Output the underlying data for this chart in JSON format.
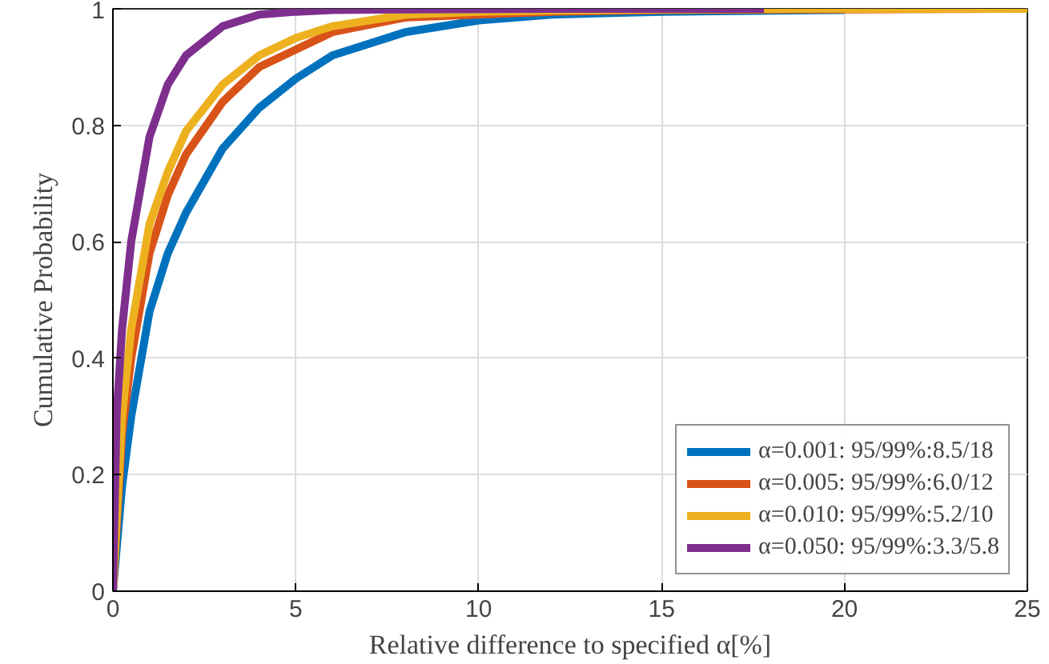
{
  "chart_data": {
    "type": "line",
    "xlabel": "Relative difference to specified α[%]",
    "ylabel": "Cumulative Probability",
    "xlim": [
      0,
      25
    ],
    "ylim": [
      0,
      1
    ],
    "xticks": [
      0,
      5,
      10,
      15,
      20,
      25
    ],
    "yticks": [
      0,
      0.2,
      0.4,
      0.6,
      0.8,
      1
    ],
    "grid": true,
    "legend": "bottom right",
    "line_style": "solid",
    "marker": "none",
    "series": [
      {
        "name": "α=0.001: 95/99%:8.5/18",
        "color": "#0072bd",
        "x": [
          0,
          0.25,
          0.5,
          1,
          1.5,
          2,
          3,
          4,
          5,
          6,
          8,
          10,
          12,
          15,
          20
        ],
        "values": [
          0,
          0.18,
          0.3,
          0.48,
          0.58,
          0.65,
          0.76,
          0.83,
          0.88,
          0.92,
          0.96,
          0.98,
          0.99,
          0.995,
          0.998
        ]
      },
      {
        "name": "α=0.005: 95/99%:6.0/12",
        "color": "#d95319",
        "x": [
          0,
          0.25,
          0.5,
          1,
          1.5,
          2,
          3,
          4,
          5,
          6,
          8,
          10,
          12,
          15,
          20,
          25
        ],
        "values": [
          0,
          0.27,
          0.4,
          0.58,
          0.68,
          0.75,
          0.84,
          0.9,
          0.93,
          0.96,
          0.985,
          0.99,
          0.995,
          0.998,
          0.999,
          1
        ]
      },
      {
        "name": "α=0.010: 95/99%:5.2/10",
        "color": "#edb120",
        "x": [
          0,
          0.25,
          0.5,
          1,
          1.5,
          2,
          3,
          4,
          5,
          6,
          8,
          10,
          12,
          15,
          20,
          25
        ],
        "values": [
          0,
          0.3,
          0.45,
          0.63,
          0.72,
          0.79,
          0.87,
          0.92,
          0.95,
          0.97,
          0.99,
          0.995,
          0.997,
          0.999,
          1,
          1
        ]
      },
      {
        "name": "α=0.050: 95/99%:3.3/5.8",
        "color": "#7e2f8e",
        "x": [
          0,
          0.1,
          0.25,
          0.5,
          1,
          1.5,
          2,
          3,
          4,
          5,
          6,
          8,
          12,
          17.8
        ],
        "values": [
          0,
          0.3,
          0.45,
          0.6,
          0.78,
          0.87,
          0.92,
          0.97,
          0.99,
          0.995,
          0.998,
          0.999,
          1,
          1
        ]
      }
    ]
  }
}
